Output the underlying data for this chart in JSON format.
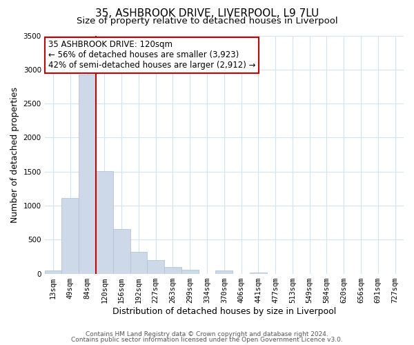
{
  "title": "35, ASHBROOK DRIVE, LIVERPOOL, L9 7LU",
  "subtitle": "Size of property relative to detached houses in Liverpool",
  "xlabel": "Distribution of detached houses by size in Liverpool",
  "ylabel": "Number of detached properties",
  "bar_labels": [
    "13sqm",
    "49sqm",
    "84sqm",
    "120sqm",
    "156sqm",
    "192sqm",
    "227sqm",
    "263sqm",
    "299sqm",
    "334sqm",
    "370sqm",
    "406sqm",
    "441sqm",
    "477sqm",
    "513sqm",
    "549sqm",
    "584sqm",
    "620sqm",
    "656sqm",
    "691sqm",
    "727sqm"
  ],
  "bar_heights": [
    50,
    1110,
    2930,
    1510,
    655,
    325,
    195,
    95,
    55,
    0,
    50,
    0,
    20,
    0,
    0,
    0,
    0,
    0,
    0,
    0,
    0
  ],
  "bar_color": "#cdd9e8",
  "bar_edge_color": "#b0c4d8",
  "vline_color": "#cc0000",
  "ylim": [
    0,
    3500
  ],
  "annotation_line1": "35 ASHBROOK DRIVE: 120sqm",
  "annotation_line2": "← 56% of detached houses are smaller (3,923)",
  "annotation_line3": "42% of semi-detached houses are larger (2,912) →",
  "annotation_box_facecolor": "white",
  "annotation_box_edgecolor": "#cc0000",
  "footer_line1": "Contains HM Land Registry data © Crown copyright and database right 2024.",
  "footer_line2": "Contains public sector information licensed under the Open Government Licence v3.0.",
  "title_fontsize": 11,
  "subtitle_fontsize": 9.5,
  "axis_label_fontsize": 9,
  "tick_fontsize": 7.5,
  "annotation_fontsize": 8.5,
  "footer_fontsize": 6.5,
  "vline_bar_index": 2
}
